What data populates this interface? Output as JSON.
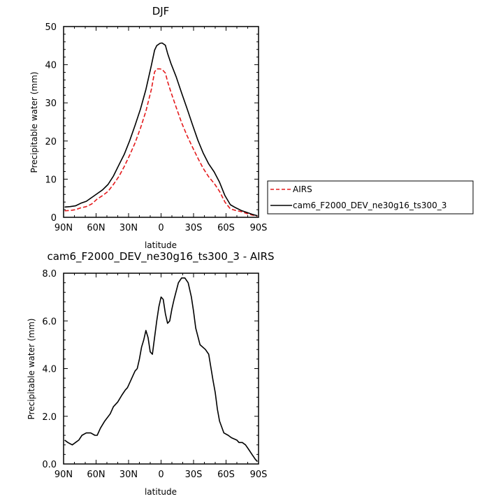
{
  "chart_data": [
    {
      "type": "line",
      "title": "DJF",
      "xlabel": "latitude",
      "ylabel": "Precipitable water (mm)",
      "xlim": [
        90,
        -90
      ],
      "ylim": [
        0,
        50
      ],
      "x_tick_values": [
        90,
        60,
        30,
        0,
        -30,
        -60,
        -90
      ],
      "x_tick_labels": [
        "90N",
        "60N",
        "30N",
        "0",
        "30S",
        "60S",
        "90S"
      ],
      "y_tick_values": [
        0,
        10,
        20,
        30,
        40,
        50
      ],
      "y_tick_labels": [
        "0",
        "10",
        "20",
        "30",
        "40",
        "50"
      ],
      "legend_position": "right",
      "series": [
        {
          "name": "AIRS",
          "color": "#e41a1c",
          "dashed": true,
          "x": [
            89,
            84,
            79,
            74,
            69,
            64,
            59,
            54,
            49,
            44,
            39,
            34,
            29,
            24,
            19,
            14,
            9,
            6,
            4,
            1,
            -1,
            -4,
            -6,
            -9,
            -14,
            -19,
            -24,
            -29,
            -34,
            -39,
            -44,
            -49,
            -54,
            -59,
            -64,
            -69,
            -74,
            -79,
            -84,
            -89
          ],
          "y": [
            1.7,
            1.8,
            2.0,
            2.5,
            2.8,
            3.5,
            4.8,
            5.7,
            6.8,
            8.6,
            10.7,
            13.3,
            16.3,
            19.5,
            23.4,
            27.8,
            33.5,
            38.1,
            38.9,
            38.9,
            38.8,
            37.8,
            35.6,
            32.9,
            28.8,
            24.8,
            21.4,
            18.4,
            15.5,
            12.8,
            10.6,
            8.9,
            6.8,
            4.0,
            2.2,
            1.8,
            1.5,
            1.0,
            0.6,
            0.3
          ]
        },
        {
          "name": "cam6_F2000_DEV_ne30g16_ts300_3",
          "color": "#000000",
          "dashed": false,
          "x": [
            89,
            84,
            79,
            74,
            69,
            64,
            59,
            54,
            49,
            44,
            39,
            34,
            29,
            24,
            19,
            14,
            9,
            6,
            4,
            1,
            -1,
            -4,
            -6,
            -9,
            -14,
            -19,
            -24,
            -29,
            -34,
            -39,
            -44,
            -49,
            -54,
            -59,
            -64,
            -69,
            -74,
            -79,
            -84,
            -89
          ],
          "y": [
            2.7,
            2.8,
            3.0,
            3.7,
            4.2,
            5.2,
            6.2,
            7.2,
            8.6,
            10.8,
            13.7,
            16.5,
            20.1,
            24.1,
            28.4,
            33.5,
            39.8,
            43.8,
            45.0,
            45.6,
            45.7,
            45.1,
            43.0,
            40.4,
            36.8,
            32.6,
            28.5,
            24.3,
            20.2,
            16.8,
            14.0,
            11.9,
            9.2,
            5.7,
            3.3,
            2.5,
            1.8,
            1.3,
            0.8,
            0.4
          ]
        }
      ]
    },
    {
      "type": "line",
      "title": "cam6_F2000_DEV_ne30g16_ts300_3 - AIRS",
      "xlabel": "latitude",
      "ylabel": "Precipitable water (mm)",
      "xlim": [
        90,
        -90
      ],
      "ylim": [
        0,
        8
      ],
      "x_tick_values": [
        90,
        60,
        30,
        0,
        -30,
        -60,
        -90
      ],
      "x_tick_labels": [
        "90N",
        "60N",
        "30N",
        "0",
        "30S",
        "60S",
        "90S"
      ],
      "y_tick_values": [
        0,
        2,
        4,
        6,
        8
      ],
      "y_tick_labels": [
        "0.0",
        "2.0",
        "4.0",
        "6.0",
        "8.0"
      ],
      "series": [
        {
          "color": "#000000",
          "dashed": false,
          "x": [
            89,
            86,
            82,
            79,
            76,
            73,
            69,
            65,
            61,
            59,
            56,
            52,
            47,
            44,
            40,
            36,
            33,
            31,
            28,
            26,
            24,
            22,
            20,
            18,
            16,
            14,
            12,
            10,
            8,
            6,
            4,
            2,
            0,
            -2,
            -4,
            -6,
            -8,
            -10,
            -12,
            -16,
            -19,
            -22,
            -25,
            -28,
            -30,
            -32,
            -36,
            -41,
            -44,
            -48,
            -50,
            -52,
            -54,
            -58,
            -62,
            -65,
            -70,
            -72,
            -75,
            -78,
            -81,
            -84,
            -87,
            -89
          ],
          "y": [
            1.0,
            0.9,
            0.8,
            0.9,
            1.0,
            1.2,
            1.3,
            1.3,
            1.2,
            1.2,
            1.5,
            1.8,
            2.1,
            2.4,
            2.6,
            2.9,
            3.1,
            3.2,
            3.5,
            3.7,
            3.9,
            4.0,
            4.4,
            4.9,
            5.2,
            5.6,
            5.3,
            4.7,
            4.6,
            5.3,
            6.0,
            6.6,
            7.0,
            6.9,
            6.3,
            5.9,
            6.0,
            6.5,
            6.9,
            7.6,
            7.8,
            7.8,
            7.6,
            7.0,
            6.4,
            5.7,
            5.0,
            4.8,
            4.6,
            3.5,
            3.0,
            2.3,
            1.8,
            1.3,
            1.2,
            1.1,
            1.0,
            0.9,
            0.9,
            0.8,
            0.6,
            0.4,
            0.2,
            0.1
          ]
        }
      ]
    }
  ]
}
